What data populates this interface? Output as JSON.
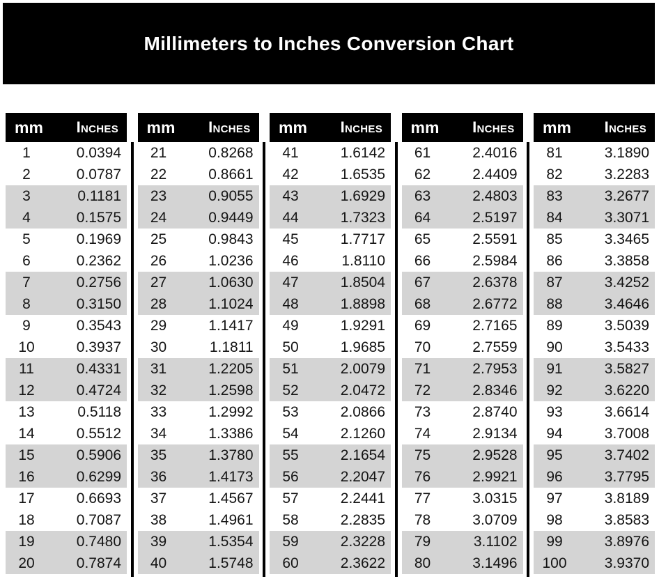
{
  "header": {
    "title": "Millimeters to Inches Conversion Chart"
  },
  "columns": {
    "mm": "mm",
    "inches": "Inches"
  },
  "colors": {
    "banner_bg": "#000000",
    "header_bg": "#000000",
    "header_text": "#ffffff",
    "stripe": "#d4d4d4",
    "body_text": "#141414",
    "background": "#ffffff"
  },
  "chart_data": {
    "type": "table",
    "title": "Millimeters to Inches Conversion Chart",
    "columns": [
      "mm",
      "Inches"
    ],
    "layout": {
      "tables_count": 5,
      "rows_per_table": 20,
      "zebra": "rows shaded in pairs: 3-4, 7-8, 11-12, 15-16, 19-20 of each table",
      "legend_position": "none",
      "grid": "off"
    },
    "rows": [
      [
        1,
        "0.0394"
      ],
      [
        2,
        "0.0787"
      ],
      [
        3,
        "0.1181"
      ],
      [
        4,
        "0.1575"
      ],
      [
        5,
        "0.1969"
      ],
      [
        6,
        "0.2362"
      ],
      [
        7,
        "0.2756"
      ],
      [
        8,
        "0.3150"
      ],
      [
        9,
        "0.3543"
      ],
      [
        10,
        "0.3937"
      ],
      [
        11,
        "0.4331"
      ],
      [
        12,
        "0.4724"
      ],
      [
        13,
        "0.5118"
      ],
      [
        14,
        "0.5512"
      ],
      [
        15,
        "0.5906"
      ],
      [
        16,
        "0.6299"
      ],
      [
        17,
        "0.6693"
      ],
      [
        18,
        "0.7087"
      ],
      [
        19,
        "0.7480"
      ],
      [
        20,
        "0.7874"
      ],
      [
        21,
        "0.8268"
      ],
      [
        22,
        "0.8661"
      ],
      [
        23,
        "0.9055"
      ],
      [
        24,
        "0.9449"
      ],
      [
        25,
        "0.9843"
      ],
      [
        26,
        "1.0236"
      ],
      [
        27,
        "1.0630"
      ],
      [
        28,
        "1.1024"
      ],
      [
        29,
        "1.1417"
      ],
      [
        30,
        "1.1811"
      ],
      [
        31,
        "1.2205"
      ],
      [
        32,
        "1.2598"
      ],
      [
        33,
        "1.2992"
      ],
      [
        34,
        "1.3386"
      ],
      [
        35,
        "1.3780"
      ],
      [
        36,
        "1.4173"
      ],
      [
        37,
        "1.4567"
      ],
      [
        38,
        "1.4961"
      ],
      [
        39,
        "1.5354"
      ],
      [
        40,
        "1.5748"
      ],
      [
        41,
        "1.6142"
      ],
      [
        42,
        "1.6535"
      ],
      [
        43,
        "1.6929"
      ],
      [
        44,
        "1.7323"
      ],
      [
        45,
        "1.7717"
      ],
      [
        46,
        "1.8110"
      ],
      [
        47,
        "1.8504"
      ],
      [
        48,
        "1.8898"
      ],
      [
        49,
        "1.9291"
      ],
      [
        50,
        "1.9685"
      ],
      [
        51,
        "2.0079"
      ],
      [
        52,
        "2.0472"
      ],
      [
        53,
        "2.0866"
      ],
      [
        54,
        "2.1260"
      ],
      [
        55,
        "2.1654"
      ],
      [
        56,
        "2.2047"
      ],
      [
        57,
        "2.2441"
      ],
      [
        58,
        "2.2835"
      ],
      [
        59,
        "2.3228"
      ],
      [
        60,
        "2.3622"
      ],
      [
        61,
        "2.4016"
      ],
      [
        62,
        "2.4409"
      ],
      [
        63,
        "2.4803"
      ],
      [
        64,
        "2.5197"
      ],
      [
        65,
        "2.5591"
      ],
      [
        66,
        "2.5984"
      ],
      [
        67,
        "2.6378"
      ],
      [
        68,
        "2.6772"
      ],
      [
        69,
        "2.7165"
      ],
      [
        70,
        "2.7559"
      ],
      [
        71,
        "2.7953"
      ],
      [
        72,
        "2.8346"
      ],
      [
        73,
        "2.8740"
      ],
      [
        74,
        "2.9134"
      ],
      [
        75,
        "2.9528"
      ],
      [
        76,
        "2.9921"
      ],
      [
        77,
        "3.0315"
      ],
      [
        78,
        "3.0709"
      ],
      [
        79,
        "3.1102"
      ],
      [
        80,
        "3.1496"
      ],
      [
        81,
        "3.1890"
      ],
      [
        82,
        "3.2283"
      ],
      [
        83,
        "3.2677"
      ],
      [
        84,
        "3.3071"
      ],
      [
        85,
        "3.3465"
      ],
      [
        86,
        "3.3858"
      ],
      [
        87,
        "3.4252"
      ],
      [
        88,
        "3.4646"
      ],
      [
        89,
        "3.5039"
      ],
      [
        90,
        "3.5433"
      ],
      [
        91,
        "3.5827"
      ],
      [
        92,
        "3.6220"
      ],
      [
        93,
        "3.6614"
      ],
      [
        94,
        "3.7008"
      ],
      [
        95,
        "3.7402"
      ],
      [
        96,
        "3.7795"
      ],
      [
        97,
        "3.8189"
      ],
      [
        98,
        "3.8583"
      ],
      [
        99,
        "3.8976"
      ],
      [
        100,
        "3.9370"
      ]
    ]
  }
}
